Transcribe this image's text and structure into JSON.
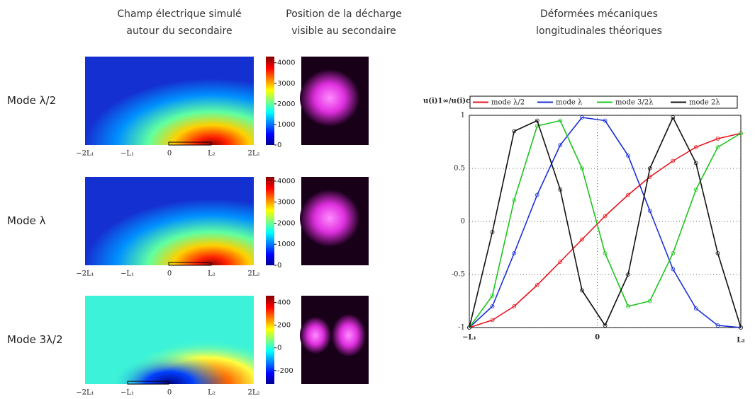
{
  "headers": [
    [
      "Champ électrique simulé",
      "autour du secondaire"
    ],
    [
      "Position de la décharge",
      "visible au secondaire"
    ],
    [
      "Déformées mécaniques",
      "longitudinales théoriques"
    ]
  ],
  "rows": [
    {
      "label": "Mode λ/2",
      "cbar_lim": [
        0,
        4300
      ],
      "cbar_ticks": [
        0,
        1000,
        2000,
        3000,
        4000
      ],
      "xticks": [
        "−2L₁",
        "−L₁",
        "0",
        "L₂",
        "2L₂"
      ]
    },
    {
      "label": "Mode λ",
      "cbar_lim": [
        0,
        4200
      ],
      "cbar_ticks": [
        0,
        1000,
        2000,
        3000,
        4000
      ],
      "xticks": [
        "−2L₁",
        "−L₁",
        "0",
        "L₂",
        "2L₂"
      ]
    },
    {
      "label": "Mode 3λ/2",
      "cbar_lim": [
        -320,
        460
      ],
      "cbar_ticks": [
        -200,
        0,
        200,
        400
      ],
      "xticks": [
        "−2L₁",
        "−L₁",
        "0",
        "L₂",
        "2L₂"
      ]
    }
  ],
  "chart_data": {
    "type": "line",
    "ylabel": "u(i)1∞/u(i)com",
    "x": [
      -1,
      -0.82,
      -0.65,
      -0.47,
      -0.29,
      -0.12,
      0.06,
      0.24,
      0.41,
      0.59,
      0.77,
      0.94,
      1.12
    ],
    "series": [
      {
        "name": "mode λ/2",
        "color": "#e8141c",
        "values": [
          -1,
          -0.93,
          -0.8,
          -0.6,
          -0.38,
          -0.17,
          0.05,
          0.25,
          0.42,
          0.57,
          0.7,
          0.78,
          0.83
        ]
      },
      {
        "name": "mode λ",
        "color": "#1a2fd6",
        "values": [
          -1,
          -0.8,
          -0.3,
          0.25,
          0.72,
          0.98,
          0.95,
          0.62,
          0.1,
          -0.45,
          -0.82,
          -0.98,
          -1
        ]
      },
      {
        "name": "mode 3/2λ",
        "color": "#1ec41e",
        "values": [
          -1,
          -0.7,
          0.2,
          0.9,
          0.95,
          0.5,
          -0.3,
          -0.8,
          -0.75,
          -0.3,
          0.3,
          0.7,
          0.83
        ]
      },
      {
        "name": "mode 2λ",
        "color": "#111111",
        "values": [
          -1,
          -0.1,
          0.85,
          0.95,
          0.3,
          -0.65,
          -0.98,
          -0.5,
          0.5,
          0.98,
          0.55,
          -0.3,
          -1
        ]
      }
    ],
    "xlim": [
      -1,
      1.12
    ],
    "ylim": [
      -1,
      1
    ],
    "xticks": [
      {
        "value": -1,
        "label": "−L₁"
      },
      0,
      {
        "value": 1.12,
        "label": "L₂"
      }
    ],
    "yticks": [
      -1,
      -0.5,
      0,
      0.5,
      1
    ],
    "grid": true
  }
}
